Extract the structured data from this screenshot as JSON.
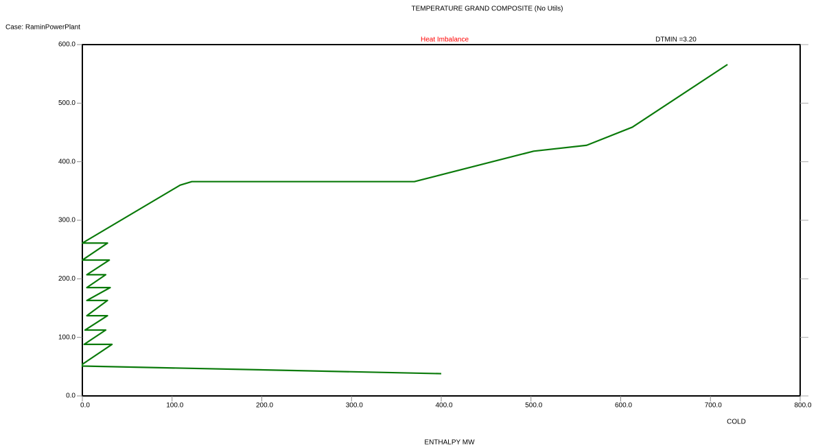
{
  "chart_data": {
    "type": "line",
    "title": "TEMPERATURE GRAND COMPOSITE (No Utils)",
    "subtitle": "Case: RaminPowerPlant",
    "x_label": "ENTHALPY MW",
    "annotations": [
      {
        "text": "Heat Imbalance",
        "color": "#ff0000"
      },
      {
        "text": "DTMIN =3.20",
        "color": "#000000"
      },
      {
        "text": "COLD",
        "color": "#000000"
      }
    ],
    "color": "#0a7a0a",
    "x": [
      400,
      0,
      0,
      33,
      2,
      26,
      3,
      28,
      5,
      28,
      5,
      31,
      5,
      26,
      5,
      30,
      0,
      28,
      0,
      109,
      122,
      370,
      503,
      562,
      613,
      719
    ],
    "values": [
      38,
      51,
      54,
      88,
      88,
      112.5,
      112.5,
      137,
      137,
      163,
      163,
      185,
      185,
      207,
      207,
      232,
      232,
      261,
      261,
      360,
      366,
      366,
      418,
      428,
      459,
      566
    ],
    "xlim": [
      0,
      800
    ],
    "ylim": [
      0,
      600
    ],
    "xticks": [
      {
        "value": 0,
        "label": "0.0"
      },
      {
        "value": 100,
        "label": "100.0"
      },
      {
        "value": 200,
        "label": "200.0"
      },
      {
        "value": 300,
        "label": "300.0"
      },
      {
        "value": 400,
        "label": "400.0"
      },
      {
        "value": 500,
        "label": "500.0"
      },
      {
        "value": 600,
        "label": "600.0"
      },
      {
        "value": 700,
        "label": "700.0"
      },
      {
        "value": 800,
        "label": "800.0"
      }
    ],
    "yticks": [
      {
        "value": 0,
        "label": "0.0"
      },
      {
        "value": 100,
        "label": "100.0"
      },
      {
        "value": 200,
        "label": "200.0"
      },
      {
        "value": 300,
        "label": "300.0"
      },
      {
        "value": 400,
        "label": "400.0"
      },
      {
        "value": 500,
        "label": "500.0"
      },
      {
        "value": 600,
        "label": "600.0"
      }
    ],
    "grid": false
  }
}
